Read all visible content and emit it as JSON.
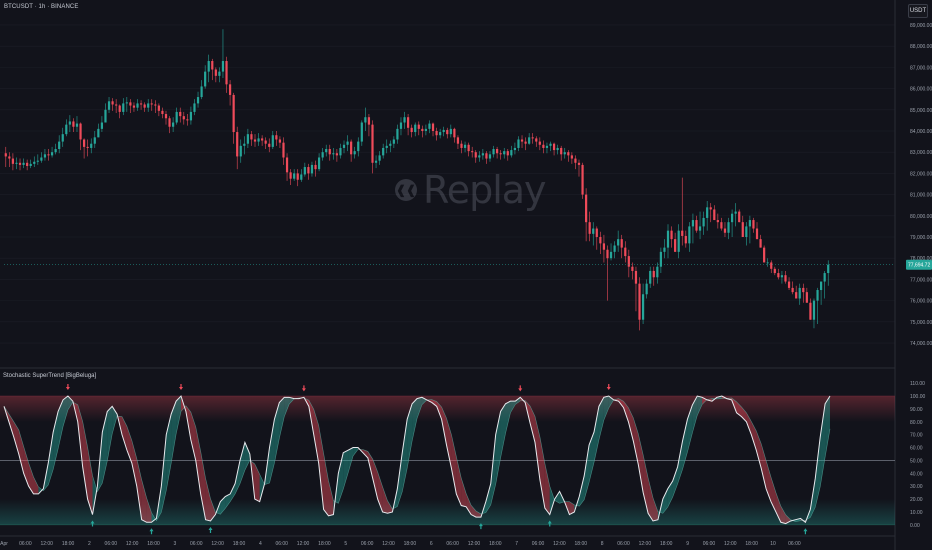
{
  "header": {
    "symbol": "BTCUSDT · 1h · BINANCE",
    "currency": "USDT",
    "indicator": "Stochastic SuperTrend [BigBeluga]",
    "replay": "Replay"
  },
  "colors": {
    "bg": "#12131b",
    "up": "#26a69a",
    "down": "#ef4b5a",
    "grid": "#1c1e27",
    "text": "#9aa0ab",
    "osc_line": "#e8eaee",
    "mid_line": "#8a8f9c"
  },
  "chart_data": [
    {
      "type": "candlestick",
      "ylim": [
        73200,
        89800
      ],
      "y_ticks": [
        "89,000.00",
        "88,000.00",
        "87,000.00",
        "86,000.00",
        "85,000.00",
        "84,000.00",
        "83,000.00",
        "82,000.00",
        "81,000.00",
        "80,000.00",
        "79,000.00",
        "78,000.00",
        "77,000.00",
        "76,000.00",
        "75,000.00",
        "74,000.00"
      ],
      "y_tick_values": [
        89000,
        88000,
        87000,
        86000,
        85000,
        84000,
        83000,
        82000,
        81000,
        80000,
        79000,
        78000,
        77000,
        76000,
        75000,
        74000
      ],
      "last_price": "77,694.72",
      "last_value": 77694.72,
      "series": {
        "close": [
          82800,
          82700,
          82450,
          82500,
          82400,
          82500,
          82350,
          82450,
          82550,
          82600,
          82750,
          82900,
          82850,
          83000,
          83150,
          83500,
          83850,
          84300,
          84450,
          84200,
          84350,
          83600,
          83250,
          83200,
          83400,
          83700,
          84100,
          84400,
          85000,
          85400,
          85250,
          85200,
          84900,
          85300,
          85350,
          85200,
          85100,
          85300,
          85250,
          85100,
          85300,
          85250,
          85200,
          84950,
          84800,
          84600,
          84200,
          84400,
          84900,
          84700,
          84550,
          84500,
          84900,
          85300,
          85600,
          86100,
          86800,
          87300,
          86900,
          86600,
          86800,
          87300,
          86200,
          85700,
          83950,
          82800,
          83300,
          83400,
          83850,
          83600,
          83500,
          83650,
          83550,
          83400,
          83250,
          83800,
          83600,
          83450,
          82750,
          82050,
          81750,
          82000,
          81700,
          81950,
          82300,
          82000,
          82400,
          82200,
          82750,
          83000,
          83150,
          82900,
          82950,
          82850,
          83200,
          83350,
          83500,
          82900,
          83050,
          83500,
          84400,
          84650,
          84300,
          82500,
          82600,
          82850,
          83200,
          83300,
          83400,
          83600,
          84100,
          84400,
          84650,
          84150,
          83950,
          84300,
          84100,
          84000,
          84100,
          84350,
          84000,
          83800,
          83950,
          84050,
          83850,
          84100,
          83700,
          83400,
          83200,
          83350,
          83050,
          83000,
          82750,
          82850,
          82950,
          82700,
          82900,
          83150,
          82950,
          82900,
          83050,
          82850,
          83100,
          83200,
          83600,
          83500,
          83400,
          83700,
          83650,
          83500,
          83350,
          83200,
          83300,
          83400,
          83100,
          83200,
          82900,
          83000,
          82850,
          82700,
          82500,
          82400,
          81000,
          79700,
          79150,
          79400,
          79000,
          78700,
          78400,
          78000,
          78300,
          78600,
          78900,
          78500,
          78100,
          77600,
          77400,
          76800,
          75100,
          76300,
          76800,
          77400,
          77100,
          77600,
          78300,
          78500,
          79300,
          78900,
          78300,
          79300,
          79050,
          78700,
          79500,
          79800,
          79300,
          79500,
          79900,
          80400,
          80300,
          79800,
          79700,
          79400,
          79200,
          79700,
          80100,
          80200,
          79700,
          79000,
          79500,
          79800,
          79400,
          78900,
          78500,
          77800,
          77800,
          77500,
          77300,
          77100,
          77200,
          76900,
          76600,
          76400,
          76100,
          76600,
          76400,
          75900,
          75100,
          76000,
          76500,
          76900,
          77300,
          77694.72
        ],
        "wick_low": [
          82300,
          82300,
          82150,
          82200,
          82150,
          82250,
          82150,
          82250,
          82300,
          82400,
          82500,
          82600,
          82600,
          82750,
          82900,
          82950,
          83250,
          83750,
          83950,
          83950,
          83950,
          83100,
          82700,
          82800,
          82950,
          83200,
          83700,
          83950,
          84450,
          84850,
          84950,
          84850,
          84600,
          84750,
          84900,
          84850,
          84900,
          84950,
          85000,
          84900,
          84900,
          84950,
          84850,
          84700,
          84600,
          84300,
          83900,
          83950,
          84300,
          84400,
          84300,
          84250,
          84300,
          84750,
          85100,
          85500,
          86000,
          86300,
          86400,
          86300,
          86300,
          86500,
          85800,
          85200,
          83400,
          82200,
          82500,
          82900,
          83200,
          83300,
          83250,
          83300,
          83300,
          83150,
          83000,
          83150,
          83300,
          83200,
          82400,
          81650,
          81450,
          81650,
          81400,
          81600,
          81850,
          81700,
          81850,
          81850,
          82100,
          82600,
          82800,
          82600,
          82650,
          82550,
          82700,
          82950,
          83050,
          82550,
          82700,
          82800,
          83300,
          84000,
          83750,
          82000,
          82250,
          82400,
          82700,
          82950,
          83000,
          83200,
          83400,
          83800,
          84100,
          83800,
          83700,
          83750,
          83800,
          83700,
          83800,
          83900,
          83750,
          83550,
          83650,
          83750,
          83650,
          83700,
          83450,
          83150,
          82950,
          83000,
          82800,
          82750,
          82500,
          82550,
          82650,
          82450,
          82550,
          82750,
          82700,
          82650,
          82700,
          82600,
          82750,
          82900,
          83050,
          83200,
          83100,
          83350,
          83400,
          83250,
          83100,
          82950,
          82950,
          83050,
          82850,
          82900,
          82600,
          82700,
          82550,
          82450,
          82200,
          81850,
          80800,
          78800,
          78800,
          78600,
          78400,
          78200,
          77800,
          76000,
          77900,
          78000,
          78300,
          78000,
          77800,
          77100,
          77000,
          75500,
          74600,
          74900,
          76100,
          76600,
          76700,
          76800,
          77300,
          78000,
          78000,
          78500,
          78300,
          78000,
          78600,
          78500,
          78300,
          78700,
          79200,
          78900,
          79100,
          79300,
          79700,
          80000,
          79400,
          79300,
          79000,
          78900,
          79000,
          79500,
          79700,
          79400,
          78600,
          78700,
          79200,
          79000,
          78500,
          78200,
          77600,
          77300,
          77200,
          77000,
          76800,
          76800,
          76500,
          76300,
          76100,
          75800,
          75900,
          76100,
          75600,
          74700,
          74900,
          75800,
          76100,
          76700,
          77000
        ],
        "wick_high": [
          83250,
          83000,
          82950,
          82750,
          82700,
          82700,
          82650,
          82650,
          82800,
          82900,
          83000,
          83150,
          83150,
          83250,
          83400,
          83800,
          84150,
          84550,
          84750,
          84600,
          84700,
          84400,
          83650,
          83600,
          83650,
          84000,
          84350,
          84700,
          85300,
          85600,
          85550,
          85500,
          85250,
          85550,
          85600,
          85500,
          85350,
          85500,
          85450,
          85350,
          85500,
          85500,
          85450,
          85300,
          85100,
          84950,
          84700,
          84650,
          85100,
          85100,
          84900,
          84800,
          85150,
          85500,
          85850,
          86400,
          87100,
          87600,
          87400,
          87000,
          87000,
          88800,
          87500,
          86400,
          85800,
          84200,
          83600,
          83750,
          84100,
          84000,
          83850,
          83900,
          83800,
          83700,
          83650,
          84000,
          84000,
          83750,
          83700,
          82950,
          82200,
          82200,
          82200,
          82200,
          82500,
          82450,
          82550,
          82600,
          82950,
          83200,
          83350,
          83350,
          83200,
          83150,
          83400,
          83550,
          83800,
          83600,
          83250,
          83700,
          84500,
          85100,
          84800,
          84500,
          82850,
          83050,
          83400,
          83600,
          83550,
          83750,
          84300,
          84650,
          84900,
          84800,
          84300,
          84400,
          84450,
          84250,
          84300,
          84500,
          84400,
          84150,
          84100,
          84200,
          84150,
          84300,
          84150,
          83800,
          83550,
          83500,
          83450,
          83250,
          83100,
          83050,
          83150,
          83050,
          83050,
          83300,
          83250,
          83100,
          83200,
          83150,
          83300,
          83450,
          83750,
          83800,
          83700,
          83900,
          83900,
          83750,
          83700,
          83550,
          83450,
          83500,
          83450,
          83350,
          83300,
          83200,
          83100,
          83000,
          82850,
          82650,
          82500,
          81300,
          80200,
          79700,
          79500,
          79250,
          79100,
          78600,
          78700,
          78800,
          79300,
          79100,
          78800,
          78400,
          77800,
          77600,
          77100,
          76800,
          77000,
          77600,
          77600,
          77800,
          78500,
          78900,
          79600,
          79500,
          79200,
          79600,
          81800,
          79300,
          79700,
          80100,
          80000,
          80200,
          80200,
          80700,
          80600,
          80500,
          80100,
          79900,
          79700,
          79900,
          80300,
          80600,
          80300,
          80000,
          79700,
          80000,
          79900,
          79700,
          79100,
          78600,
          78000,
          77900,
          77600,
          77500,
          77400,
          77400,
          77100,
          76900,
          76700,
          76800,
          76800,
          76600,
          76100,
          76100,
          76600,
          76900,
          77400,
          77900
        ]
      }
    },
    {
      "type": "line",
      "title": "Stochastic SuperTrend [BigBeluga]",
      "ylim": [
        -4,
        114
      ],
      "y_ticks": [
        "110.00",
        "100.00",
        "90.00",
        "80.00",
        "70.00",
        "60.00",
        "50.00",
        "40.00",
        "30.00",
        "20.00",
        "10.00",
        "0.00"
      ],
      "y_tick_values": [
        110,
        100,
        90,
        80,
        70,
        60,
        50,
        40,
        30,
        20,
        10,
        0
      ],
      "midline": 50,
      "x_ticks": [
        "Apr",
        "06:00",
        "12:00",
        "18:00",
        "2",
        "06:00",
        "12:00",
        "18:00",
        "3",
        "06:00",
        "12:00",
        "18:00",
        "4",
        "06:00",
        "12:00",
        "18:00",
        "5",
        "06:00",
        "12:00",
        "18:00",
        "6",
        "06:00",
        "12:00",
        "18:00",
        "7",
        "06:00",
        "12:00",
        "18:00",
        "8",
        "06:00",
        "12:00",
        "18:00",
        "9",
        "06:00",
        "12:00",
        "18:00",
        "10",
        "06:00"
      ],
      "x_tick_hours": [
        0,
        6,
        12,
        18,
        24,
        30,
        36,
        42,
        48,
        54,
        60,
        66,
        72,
        78,
        84,
        90,
        96,
        102,
        108,
        114,
        120,
        126,
        132,
        138,
        144,
        150,
        156,
        162,
        168,
        174,
        180,
        186,
        192,
        198,
        204,
        210,
        216,
        222
      ],
      "series": {
        "stoch": [
          92,
          80,
          68,
          55,
          40,
          30,
          24,
          24,
          28,
          48,
          72,
          88,
          97,
          100,
          96,
          80,
          45,
          20,
          8,
          30,
          72,
          88,
          92,
          86,
          70,
          58,
          48,
          30,
          4,
          2,
          2,
          5,
          30,
          70,
          86,
          96,
          100,
          88,
          66,
          50,
          24,
          4,
          3,
          8,
          18,
          22,
          24,
          32,
          50,
          64,
          55,
          20,
          18,
          32,
          60,
          82,
          95,
          99,
          99,
          98,
          98,
          99,
          92,
          70,
          48,
          12,
          7,
          8,
          40,
          56,
          58,
          60,
          60,
          56,
          52,
          36,
          20,
          10,
          9,
          10,
          28,
          56,
          82,
          94,
          98,
          99,
          97,
          95,
          92,
          82,
          62,
          44,
          24,
          15,
          14,
          8,
          6,
          6,
          18,
          32,
          70,
          88,
          94,
          96,
          96,
          99,
          95,
          79,
          64,
          35,
          13,
          8,
          20,
          26,
          18,
          8,
          10,
          22,
          38,
          62,
          72,
          92,
          99,
          100,
          97,
          96,
          91,
          80,
          65,
          47,
          25,
          9,
          3,
          4,
          20,
          28,
          34,
          45,
          65,
          82,
          93,
          100,
          99,
          97,
          96,
          99,
          100,
          98,
          97,
          87,
          84,
          80,
          70,
          58,
          44,
          28,
          18,
          10,
          2,
          1,
          3,
          4,
          5,
          2,
          12,
          36,
          68,
          94,
          100
        ]
      }
    }
  ]
}
